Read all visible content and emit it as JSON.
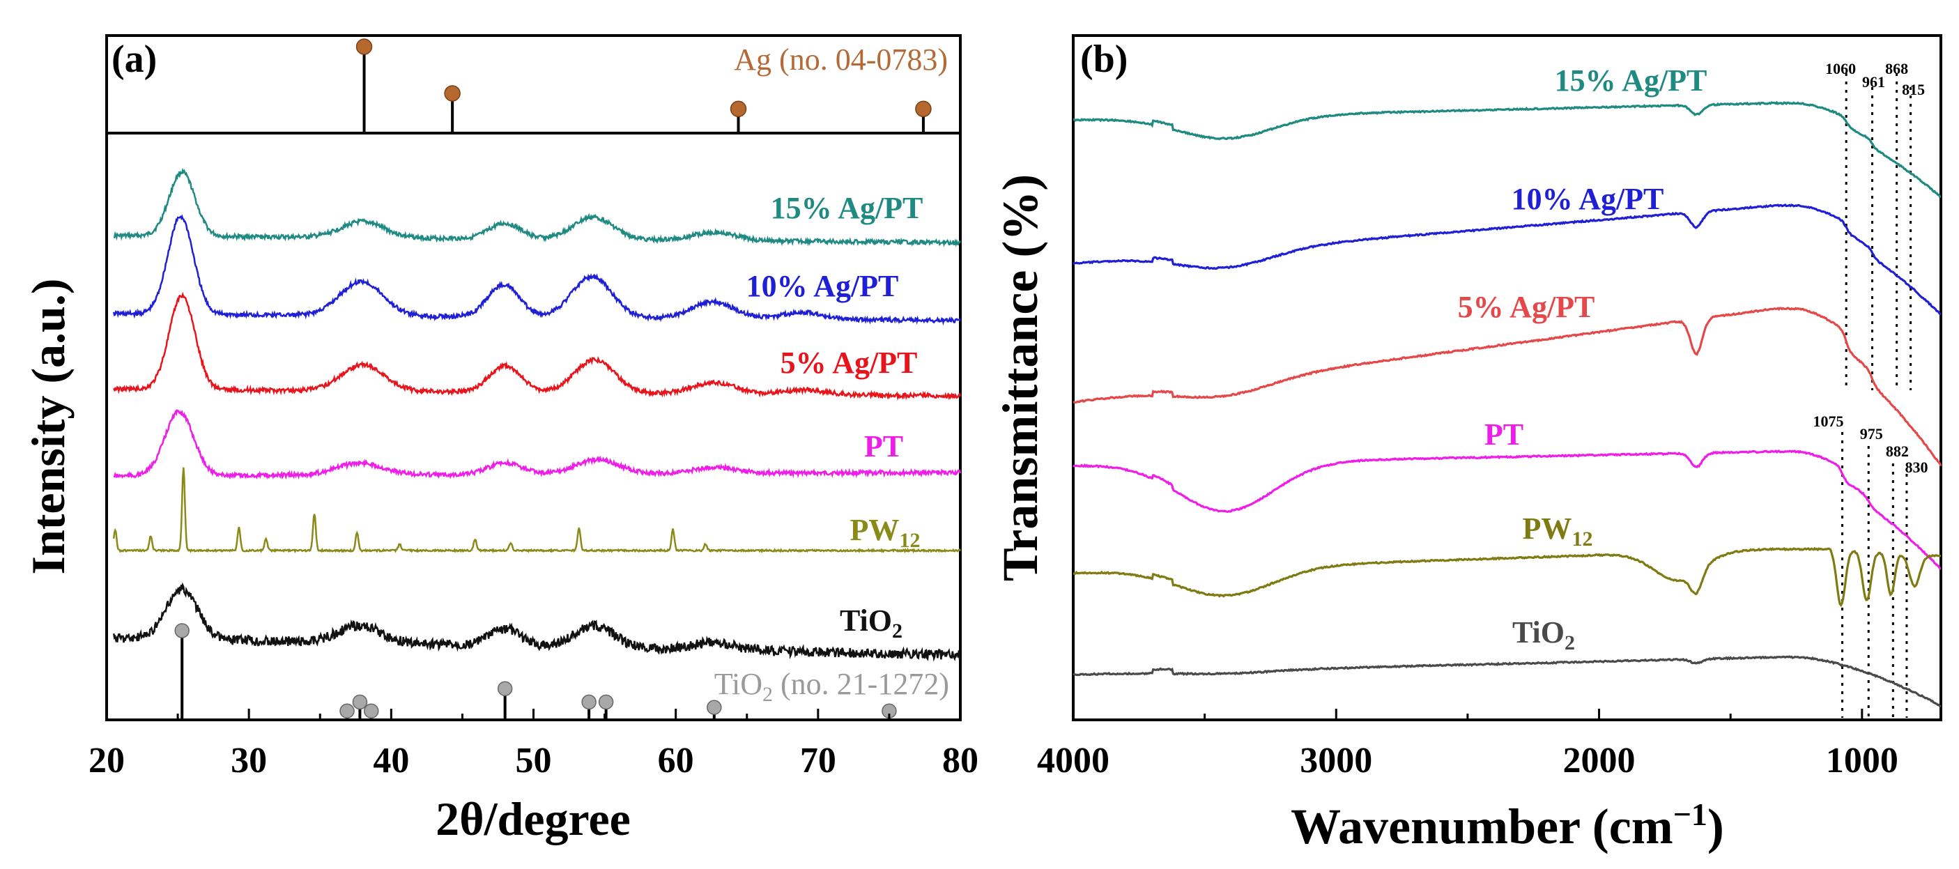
{
  "chart_data": [
    {
      "panel": "(a)",
      "type": "line",
      "subtype": "XRD pattern (stacked, offset)",
      "xlabel": "2θ/degree",
      "ylabel": "Intensity (a.u.)",
      "xlim": [
        20,
        80
      ],
      "xticks": [
        20,
        30,
        40,
        50,
        60,
        70,
        80
      ],
      "reference_top": {
        "label": "Ag (no. 04-0783)",
        "peaks_2theta": [
          38.1,
          44.3,
          64.4,
          77.4
        ],
        "relative_heights": [
          1.0,
          0.46,
          0.28,
          0.28
        ]
      },
      "reference_bottom": {
        "label_main": "TiO",
        "label_sub": "2",
        "label_tail": " (no. 21-1272)",
        "peaks_2theta": [
          25.3,
          36.9,
          37.8,
          38.6,
          48.0,
          53.9,
          55.1,
          62.7,
          75.0
        ],
        "relative_heights": [
          1.0,
          0.1,
          0.2,
          0.1,
          0.35,
          0.2,
          0.2,
          0.14,
          0.1
        ]
      },
      "series": [
        {
          "name": "15% Ag/PT",
          "color": "#1f8a82",
          "peaks": [
            [
              25.3,
              1.0,
              0.9
            ],
            [
              38.0,
              0.25,
              1.5
            ],
            [
              48.0,
              0.24,
              1.1
            ],
            [
              54.2,
              0.35,
              1.4
            ],
            [
              62.7,
              0.13,
              1.5
            ]
          ]
        },
        {
          "name": "10% Ag/PT",
          "color": "#1f1fd6",
          "peaks": [
            [
              25.2,
              1.0,
              0.9
            ],
            [
              37.9,
              0.35,
              1.5
            ],
            [
              47.9,
              0.33,
              1.1
            ],
            [
              54.1,
              0.42,
              1.4
            ],
            [
              62.6,
              0.17,
              1.5
            ],
            [
              69.0,
              0.07,
              1.5
            ]
          ]
        },
        {
          "name": "5% Ag/PT",
          "color": "#e8141c",
          "peaks": [
            [
              25.3,
              1.0,
              0.9
            ],
            [
              38.0,
              0.28,
              1.5
            ],
            [
              48.0,
              0.28,
              1.1
            ],
            [
              54.3,
              0.35,
              1.4
            ],
            [
              62.7,
              0.12,
              1.5
            ],
            [
              69.0,
              0.05,
              1.5
            ]
          ]
        },
        {
          "name": "PT",
          "color": "#ee1ee8",
          "peaks": [
            [
              25.1,
              0.8,
              1.0
            ],
            [
              37.8,
              0.15,
              1.6
            ],
            [
              48.0,
              0.14,
              1.2
            ],
            [
              54.5,
              0.18,
              1.5
            ],
            [
              62.8,
              0.08,
              1.5
            ]
          ]
        },
        {
          "name": "PW",
          "name_sub": "12",
          "color": "#8a8a18",
          "peaks": [
            [
              20.6,
              0.25,
              0.1
            ],
            [
              23.1,
              0.18,
              0.1
            ],
            [
              25.4,
              1.0,
              0.1
            ],
            [
              29.3,
              0.28,
              0.1
            ],
            [
              31.2,
              0.14,
              0.1
            ],
            [
              34.6,
              0.45,
              0.1
            ],
            [
              37.6,
              0.22,
              0.1
            ],
            [
              40.6,
              0.08,
              0.1
            ],
            [
              45.9,
              0.14,
              0.1
            ],
            [
              48.4,
              0.1,
              0.1
            ],
            [
              53.2,
              0.28,
              0.1
            ],
            [
              59.8,
              0.26,
              0.1
            ],
            [
              62.1,
              0.08,
              0.1
            ]
          ]
        },
        {
          "name": "TiO",
          "name_sub": "2",
          "color": "#111111",
          "peaks": [
            [
              25.3,
              0.65,
              1.1
            ],
            [
              37.8,
              0.22,
              1.5
            ],
            [
              48.0,
              0.22,
              1.1
            ],
            [
              54.3,
              0.28,
              1.4
            ],
            [
              62.7,
              0.1,
              1.4
            ]
          ]
        }
      ]
    },
    {
      "panel": "(b)",
      "type": "line",
      "subtype": "FT-IR spectra (stacked, offset)",
      "xlabel_main": "Wavenumber (cm",
      "xlabel_sup": "−1",
      "xlabel_tail": ")",
      "ylabel": "Transmittance (%)",
      "xlim": [
        4000,
        700
      ],
      "xticks": [
        4000,
        3000,
        2000,
        1000
      ],
      "series": [
        {
          "name": "15% Ag/PT",
          "color": "#1f8a82"
        },
        {
          "name": "10% Ag/PT",
          "color": "#1f1fd6"
        },
        {
          "name": "5% Ag/PT",
          "color": "#e54848"
        },
        {
          "name": "PT",
          "color": "#ee1ee8"
        },
        {
          "name": "PW",
          "name_sub": "12",
          "color": "#7f7a12"
        },
        {
          "name": "TiO",
          "name_sub": "2",
          "color": "#4a4a4a"
        }
      ],
      "annotations_upper": [
        1060,
        961,
        868,
        815
      ],
      "annotations_lower": [
        1075,
        975,
        882,
        830
      ]
    }
  ]
}
